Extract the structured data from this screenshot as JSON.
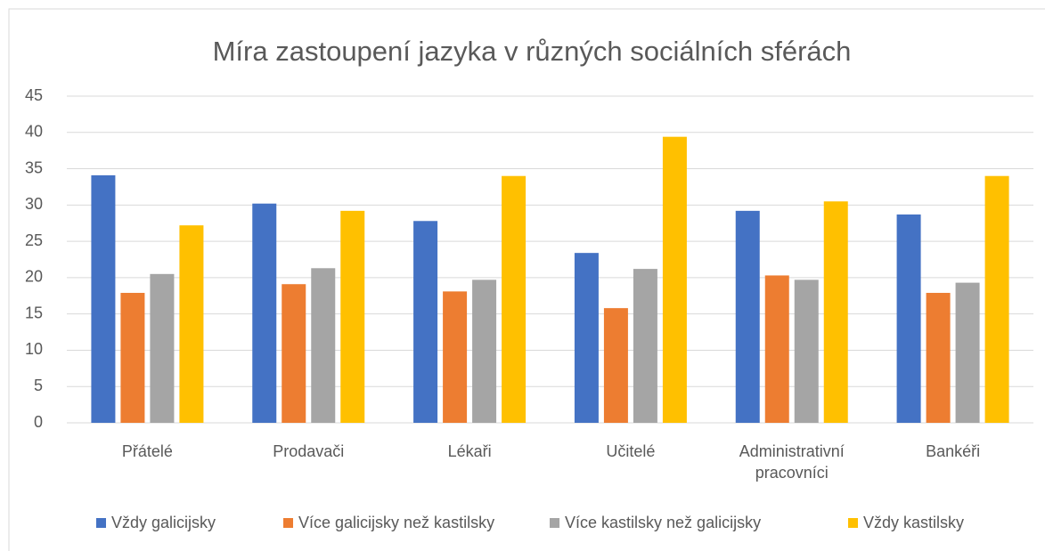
{
  "chart_data": {
    "type": "bar",
    "title": "Míra zastoupení jazyka v různých sociálních sférách",
    "categories": [
      "Přátelé",
      "Prodavači",
      "Lékaři",
      "Učitelé",
      "Administrativní pracovníci",
      "Bankéři"
    ],
    "series": [
      {
        "name": "Vždy galicijsky",
        "color": "#4472c4",
        "values": [
          34.1,
          30.2,
          27.8,
          23.4,
          29.2,
          28.7
        ]
      },
      {
        "name": "Více galicijsky než kastilsky",
        "color": "#ed7d31",
        "values": [
          17.9,
          19.1,
          18.1,
          15.8,
          20.3,
          17.9
        ]
      },
      {
        "name": "Více kastilsky než galicijsky",
        "color": "#a5a5a5",
        "values": [
          20.5,
          21.3,
          19.7,
          21.2,
          19.7,
          19.3
        ]
      },
      {
        "name": "Vždy kastilsky",
        "color": "#ffc000",
        "values": [
          27.2,
          29.2,
          34.0,
          39.4,
          30.5,
          34.0
        ]
      }
    ],
    "ylim": [
      0,
      45
    ],
    "yticks": [
      0,
      5,
      10,
      15,
      20,
      25,
      30,
      35,
      40,
      45
    ],
    "grid": true,
    "legend": "bottom"
  }
}
